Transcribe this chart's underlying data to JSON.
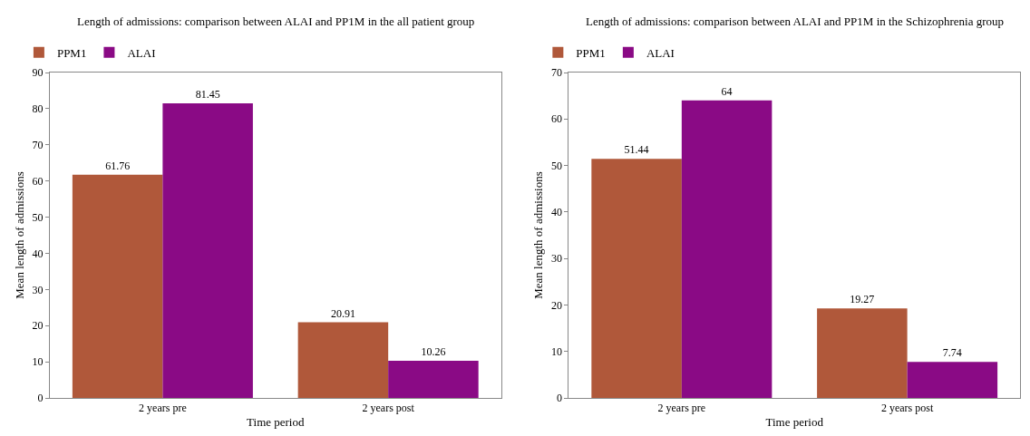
{
  "chart_data": [
    {
      "type": "bar",
      "title": "Length of admissions: comparison between ALAI and PP1M in the all patient group",
      "xlabel": "Time period",
      "ylabel": "Mean length of admissions",
      "categories": [
        "2 years pre",
        "2 years post"
      ],
      "series": [
        {
          "name": "PPM1",
          "color": "#b0583a",
          "values": [
            61.76,
            20.91
          ]
        },
        {
          "name": "ALAI",
          "color": "#8a0a85",
          "values": [
            81.45,
            10.26
          ]
        }
      ],
      "ylim": [
        0,
        90
      ],
      "yticks": [
        0,
        10,
        20,
        30,
        40,
        50,
        60,
        70,
        80,
        90
      ],
      "data_labels": true,
      "legend": "top left"
    },
    {
      "type": "bar",
      "title": "Length of admissions: comparison between ALAI and PP1M in the Schizophrenia group",
      "xlabel": "Time period",
      "ylabel": "Mean length of admissions",
      "categories": [
        "2 years pre",
        "2 years post"
      ],
      "series": [
        {
          "name": "PPM1",
          "color": "#b0583a",
          "values": [
            51.44,
            19.27
          ]
        },
        {
          "name": "ALAI",
          "color": "#8a0a85",
          "values": [
            64,
            7.74
          ]
        }
      ],
      "ylim": [
        0,
        70
      ],
      "yticks": [
        0,
        10,
        20,
        30,
        40,
        50,
        60,
        70
      ],
      "data_labels": true,
      "legend": "top left"
    }
  ]
}
